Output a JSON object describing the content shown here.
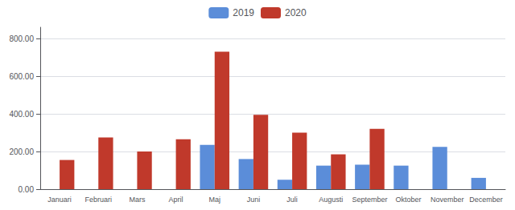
{
  "chart_data": {
    "type": "bar",
    "categories": [
      "Januari",
      "Februari",
      "Mars",
      "April",
      "Maj",
      "Juni",
      "Juli",
      "Augusti",
      "September",
      "Oktober",
      "November",
      "December"
    ],
    "series": [
      {
        "name": "2019",
        "color": "#5b8dd9",
        "values": [
          0,
          0,
          0,
          0,
          235,
          160,
          50,
          125,
          130,
          125,
          225,
          60
        ]
      },
      {
        "name": "2020",
        "color": "#c0392b",
        "values": [
          155,
          275,
          200,
          265,
          730,
          395,
          300,
          185,
          320,
          0,
          0,
          0
        ]
      }
    ],
    "ylim": [
      0,
      860
    ],
    "yticks": [
      {
        "value": 0,
        "label": "0.00"
      },
      {
        "value": 200,
        "label": "200.00"
      },
      {
        "value": 400,
        "label": "400.00"
      },
      {
        "value": 600,
        "label": "600.00"
      },
      {
        "value": 800,
        "label": "800.00"
      }
    ],
    "grid": true,
    "legend": "top"
  }
}
